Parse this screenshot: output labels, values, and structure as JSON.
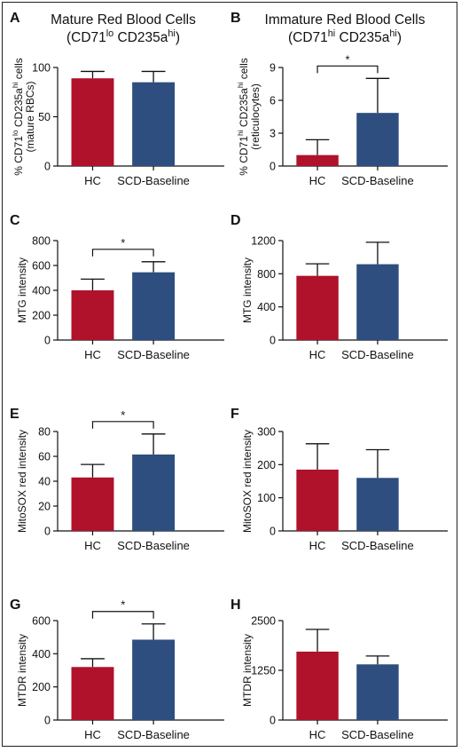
{
  "colors": {
    "hc": "#B0112B",
    "scd": "#2D4E7E"
  },
  "columns": [
    {
      "title_line1": "Mature Red Blood Cells",
      "title_line2": "(CD71lo CD235ahi)"
    },
    {
      "title_line1": "Immature Red Blood Cells",
      "title_line2": "(CD71hi CD235ahi)"
    }
  ],
  "chart_data": [
    {
      "panel": "A",
      "type": "bar",
      "categories": [
        "HC",
        "SCD-Baseline"
      ],
      "values": [
        89,
        85
      ],
      "errors": [
        7,
        11
      ],
      "ylabel_line1": "% CD71lo CD235ahi cells",
      "ylabel_line2": "(mature RBCs)",
      "ylim": [
        0,
        100
      ],
      "yticks": [
        0,
        50,
        100
      ],
      "significance": null
    },
    {
      "panel": "B",
      "type": "bar",
      "categories": [
        "HC",
        "SCD-Baseline"
      ],
      "values": [
        1.0,
        4.85
      ],
      "errors": [
        1.4,
        3.15
      ],
      "ylabel_line1": "% CD71hi CD235ahi cells",
      "ylabel_line2": "(reticulocytes)",
      "ylim": [
        0,
        9
      ],
      "yticks": [
        0,
        3,
        6,
        9
      ],
      "significance": "*"
    },
    {
      "panel": "C",
      "type": "bar",
      "categories": [
        "HC",
        "SCD-Baseline"
      ],
      "values": [
        400,
        545
      ],
      "errors": [
        90,
        85
      ],
      "ylabel_line1": "MTG intensity",
      "ylabel_line2": "",
      "ylim": [
        0,
        800
      ],
      "yticks": [
        0,
        200,
        400,
        600,
        800
      ],
      "significance": "*"
    },
    {
      "panel": "D",
      "type": "bar",
      "categories": [
        "HC",
        "SCD-Baseline"
      ],
      "values": [
        775,
        915
      ],
      "errors": [
        145,
        265
      ],
      "ylabel_line1": "MTG intensity",
      "ylabel_line2": "",
      "ylim": [
        0,
        1200
      ],
      "yticks": [
        0,
        400,
        800,
        1200
      ],
      "significance": null
    },
    {
      "panel": "E",
      "type": "bar",
      "categories": [
        "HC",
        "SCD-Baseline"
      ],
      "values": [
        43,
        61.5
      ],
      "errors": [
        10.5,
        16.5
      ],
      "ylabel_line1": "MitoSOX red intensity",
      "ylabel_line2": "",
      "ylim": [
        0,
        80
      ],
      "yticks": [
        0,
        20,
        40,
        60,
        80
      ],
      "significance": "*"
    },
    {
      "panel": "F",
      "type": "bar",
      "categories": [
        "HC",
        "SCD-Baseline"
      ],
      "values": [
        185,
        160
      ],
      "errors": [
        78,
        85
      ],
      "ylabel_line1": "MitoSOX red intensity",
      "ylabel_line2": "",
      "ylim": [
        0,
        300
      ],
      "yticks": [
        0,
        100,
        200,
        300
      ],
      "significance": null
    },
    {
      "panel": "G",
      "type": "bar",
      "categories": [
        "HC",
        "SCD-Baseline"
      ],
      "values": [
        320,
        485
      ],
      "errors": [
        50,
        95
      ],
      "ylabel_line1": "MTDR intensity",
      "ylabel_line2": "",
      "ylim": [
        0,
        600
      ],
      "yticks": [
        0,
        200,
        400,
        600
      ],
      "significance": "*"
    },
    {
      "panel": "H",
      "type": "bar",
      "categories": [
        "HC",
        "SCD-Baseline"
      ],
      "values": [
        1720,
        1400
      ],
      "errors": [
        560,
        210
      ],
      "ylabel_line1": "MTDR intensity",
      "ylabel_line2": "",
      "ylim": [
        0,
        2500
      ],
      "yticks": [
        0,
        1250,
        2500
      ],
      "significance": null
    }
  ]
}
